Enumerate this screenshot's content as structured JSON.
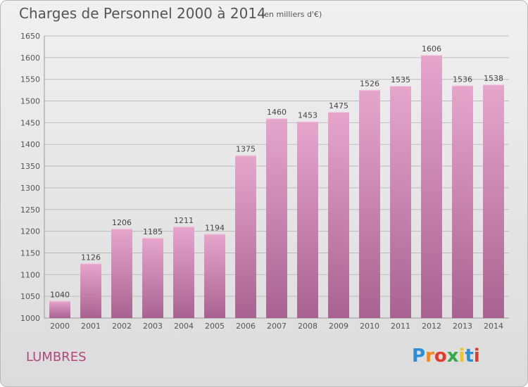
{
  "title": "Charges de Personnel 2000 à 2014",
  "subtitle": "(en milliers d'€)",
  "place": "LUMBRES",
  "logo": {
    "text": "Proxiti",
    "colors": [
      "#2a8fd6",
      "#f08a1c",
      "#e23b2c",
      "#35a84a",
      "#f4c21a",
      "#2a8fd6",
      "#e23b2c"
    ]
  },
  "colors": {
    "bar_top": "#e6a6cc",
    "bar_bottom": "#a96290",
    "grid": "#bcbcbc",
    "axis_text": "#555555"
  },
  "chart_data": {
    "type": "bar",
    "categories": [
      "2000",
      "2001",
      "2002",
      "2003",
      "2004",
      "2005",
      "2006",
      "2007",
      "2008",
      "2009",
      "2010",
      "2011",
      "2012",
      "2013",
      "2014"
    ],
    "values": [
      1040,
      1126,
      1206,
      1185,
      1211,
      1194,
      1375,
      1460,
      1453,
      1475,
      1526,
      1535,
      1606,
      1536,
      1538
    ],
    "ylim": [
      1000,
      1650
    ],
    "yticks": [
      1000,
      1050,
      1100,
      1150,
      1200,
      1250,
      1300,
      1350,
      1400,
      1450,
      1500,
      1550,
      1600,
      1650
    ],
    "grid": true,
    "data_labels": true
  }
}
